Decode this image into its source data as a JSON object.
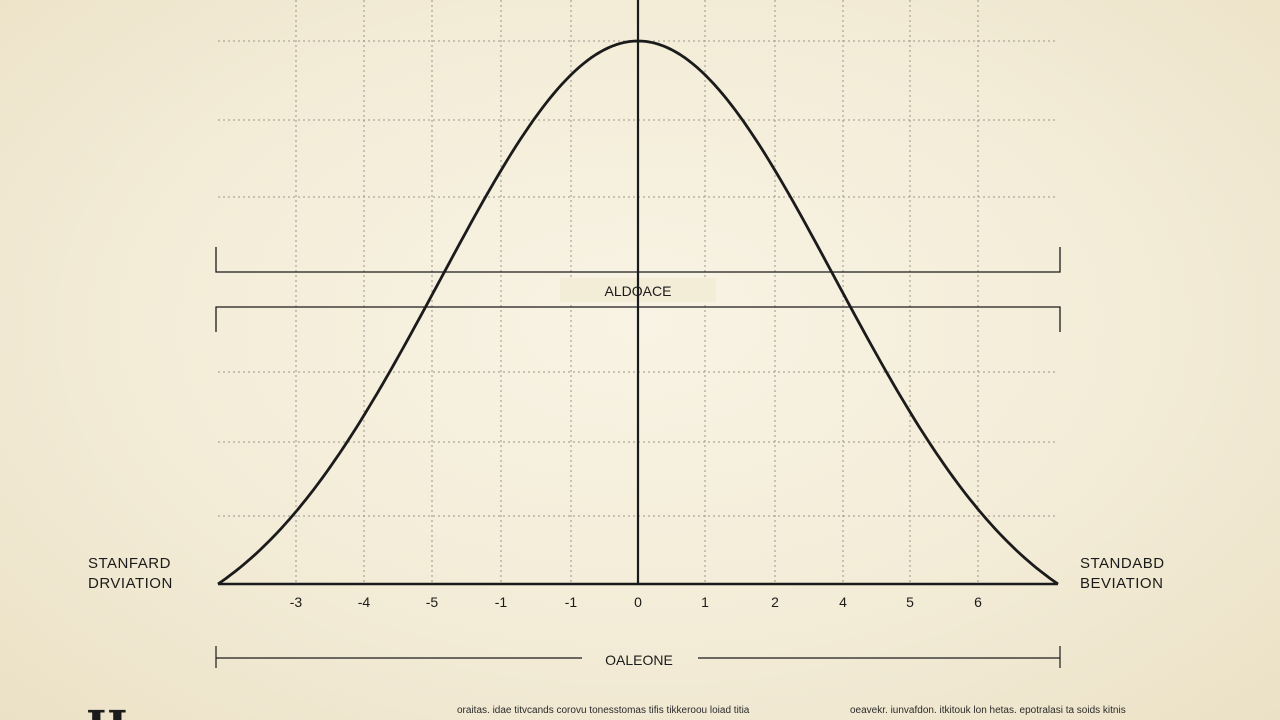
{
  "chart_data": {
    "type": "line",
    "title": "",
    "xlabel": "",
    "ylabel": "",
    "x_tick_labels": [
      "-3",
      "-4",
      "-5",
      "-1",
      "-1",
      "0",
      "1",
      "2",
      "4",
      "5",
      "6"
    ],
    "series": [
      {
        "curve": "normal-bell",
        "mean": 0,
        "std_dev": 2.9,
        "peak": 1
      }
    ],
    "ylim": [
      0,
      1.0
    ],
    "grid": true,
    "center_line": true
  },
  "labels": {
    "left_side": [
      "STANFARD",
      "DRVIATION"
    ],
    "right_side": [
      "STANDABD",
      "BEVIATION"
    ],
    "band_label": "ALDOACE",
    "bottom_bracket_label": "OALEONE",
    "big_letter": "H"
  },
  "footer": {
    "left_text": "oraitas. idae titvcands corovu tonesstomas tifis tikkeroou loiad titia",
    "right_text": "oeavekr. iunvafdon. itkitouk lon hetas. epotralasi ta soids kitnis"
  },
  "colors": {
    "ink": "#1b1b1b",
    "grid": "#9a958a",
    "background": "#f3ecd7"
  }
}
